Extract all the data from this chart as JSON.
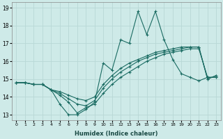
{
  "xlabel": "Humidex (Indice chaleur)",
  "background_color": "#ceeae8",
  "grid_color": "#b8d8d6",
  "line_color": "#1a6b62",
  "x_values": [
    0,
    1,
    2,
    3,
    4,
    5,
    6,
    7,
    8,
    9,
    10,
    11,
    12,
    13,
    14,
    15,
    16,
    17,
    18,
    19,
    20,
    21,
    22,
    23
  ],
  "series": [
    [
      14.8,
      14.8,
      14.7,
      14.7,
      14.4,
      13.6,
      13.0,
      13.0,
      13.3,
      13.7,
      15.9,
      15.5,
      17.2,
      17.0,
      18.8,
      17.5,
      18.8,
      17.2,
      16.1,
      15.3,
      15.1,
      14.9,
      15.1,
      15.1
    ],
    [
      14.8,
      14.8,
      14.7,
      14.7,
      14.4,
      14.1,
      13.7,
      13.1,
      13.4,
      13.6,
      14.2,
      14.7,
      15.1,
      15.4,
      15.7,
      16.0,
      16.2,
      16.4,
      16.5,
      16.6,
      16.7,
      16.7,
      15.1,
      15.1
    ],
    [
      14.8,
      14.8,
      14.7,
      14.7,
      14.4,
      14.2,
      13.9,
      13.6,
      13.5,
      13.8,
      14.5,
      15.0,
      15.4,
      15.7,
      16.0,
      16.2,
      16.4,
      16.5,
      16.6,
      16.7,
      16.8,
      16.8,
      15.0,
      15.2
    ],
    [
      14.8,
      14.8,
      14.7,
      14.7,
      14.4,
      14.3,
      14.1,
      13.9,
      13.8,
      14.0,
      14.7,
      15.2,
      15.6,
      15.9,
      16.1,
      16.3,
      16.5,
      16.6,
      16.7,
      16.8,
      16.8,
      16.8,
      15.0,
      15.2
    ]
  ],
  "ylim": [
    12.7,
    19.3
  ],
  "yticks": [
    13,
    14,
    15,
    16,
    17,
    18,
    19
  ],
  "xlim": [
    -0.5,
    23.5
  ],
  "xticks": [
    0,
    1,
    2,
    3,
    4,
    5,
    6,
    7,
    8,
    9,
    10,
    11,
    12,
    13,
    14,
    15,
    16,
    17,
    18,
    19,
    20,
    21,
    22,
    23
  ],
  "xtick_labels": [
    "0",
    "1",
    "2",
    "3",
    "4",
    "5",
    "6",
    "7",
    "8",
    "9",
    "10",
    "11",
    "12",
    "13",
    "14",
    "15",
    "16",
    "17",
    "18",
    "19",
    "20",
    "21",
    "22",
    "23"
  ]
}
